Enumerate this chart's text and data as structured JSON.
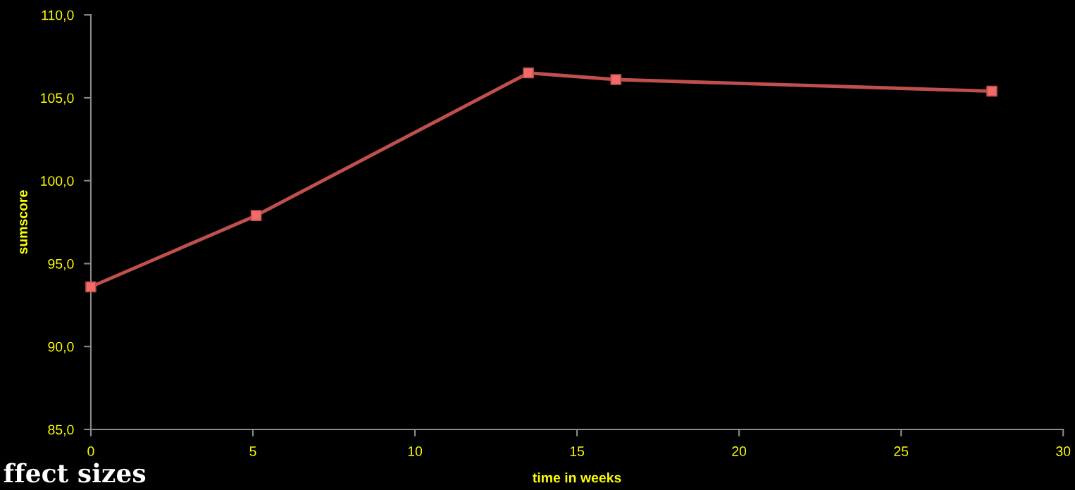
{
  "chart_data": {
    "type": "line",
    "xlabel": "time in weeks",
    "ylabel": "sumscore",
    "x": [
      0,
      5.1,
      13.5,
      16.2,
      27.8
    ],
    "series": [
      {
        "color": "#c0504d",
        "values": [
          93.6,
          97.9,
          106.5,
          106.1,
          105.4
        ]
      }
    ],
    "xlim": [
      0,
      30
    ],
    "xticks": [
      0,
      5,
      10,
      15,
      20,
      25,
      30
    ],
    "ylim": [
      85,
      110
    ],
    "yticks": [
      {
        "value": 85,
        "label": "85,0"
      },
      {
        "value": 90,
        "label": "90,0"
      },
      {
        "value": 95,
        "label": "95,0"
      },
      {
        "value": 100,
        "label": "100,0"
      },
      {
        "value": 105,
        "label": "105,0"
      },
      {
        "value": 110,
        "label": "110,0"
      }
    ],
    "marker": "square",
    "grid": false,
    "legend": false,
    "annotations": [
      "ffect sizes"
    ]
  }
}
